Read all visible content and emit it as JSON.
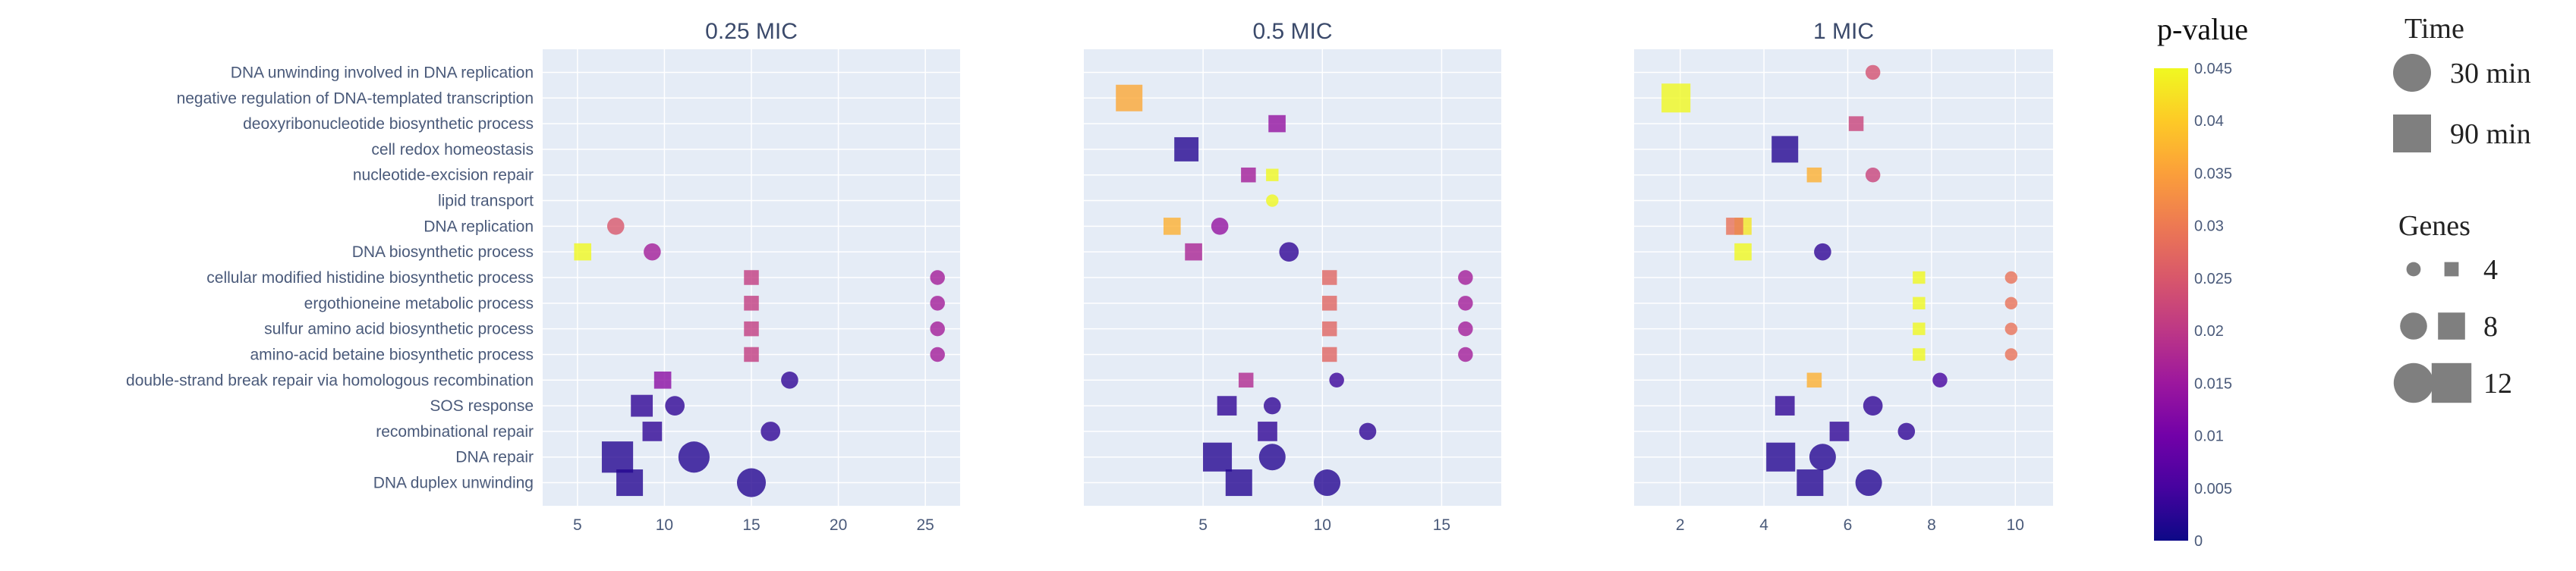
{
  "chart_data": {
    "type": "scatter",
    "categories": [
      "DNA unwinding involved in DNA replication",
      "negative regulation of DNA-templated transcription",
      "deoxyribonucleotide biosynthetic process",
      "cell redox homeostasis",
      "nucleotide-excision repair",
      "lipid transport",
      "DNA replication",
      "DNA biosynthetic process",
      "cellular modified histidine biosynthetic process",
      "ergothioneine metabolic process",
      "sulfur amino acid biosynthetic process",
      "amino-acid betaine biosynthetic process",
      "double-strand break repair via homologous recombination",
      "SOS response",
      "recombinational repair",
      "DNA repair",
      "DNA duplex unwinding"
    ],
    "colorscale": [
      "#0d0887",
      "#46039f",
      "#7201a8",
      "#9c179e",
      "#bd3786",
      "#d8576b",
      "#ed7953",
      "#fb9f3a",
      "#fdca26",
      "#f0f921"
    ],
    "colorbar": {
      "title": "p-value",
      "min": 0,
      "max": 0.045,
      "ticks": [
        "0",
        "0.005",
        "0.01",
        "0.015",
        "0.02",
        "0.025",
        "0.03",
        "0.035",
        "0.04",
        "0.045"
      ]
    },
    "panels": [
      {
        "title": "0.25 MIC",
        "xlim": [
          3,
          27
        ],
        "xticks": [
          "5",
          "10",
          "15",
          "20",
          "25"
        ],
        "points": [
          {
            "category": "DNA replication",
            "x": 7.2,
            "time": "30 min",
            "genes": 6,
            "p": 0.025
          },
          {
            "category": "DNA biosynthetic process",
            "x": 5.3,
            "time": "90 min",
            "genes": 6,
            "p": 0.045
          },
          {
            "category": "DNA biosynthetic process",
            "x": 9.3,
            "time": "30 min",
            "genes": 6,
            "p": 0.016
          },
          {
            "category": "cellular modified histidine biosynthetic process",
            "x": 15,
            "time": "90 min",
            "genes": 5,
            "p": 0.021
          },
          {
            "category": "cellular modified histidine biosynthetic process",
            "x": 25.7,
            "time": "30 min",
            "genes": 5,
            "p": 0.016
          },
          {
            "category": "ergothioneine metabolic process",
            "x": 15,
            "time": "90 min",
            "genes": 5,
            "p": 0.021
          },
          {
            "category": "ergothioneine metabolic process",
            "x": 25.7,
            "time": "30 min",
            "genes": 5,
            "p": 0.016
          },
          {
            "category": "sulfur amino acid biosynthetic process",
            "x": 15,
            "time": "90 min",
            "genes": 5,
            "p": 0.021
          },
          {
            "category": "sulfur amino acid biosynthetic process",
            "x": 25.7,
            "time": "30 min",
            "genes": 5,
            "p": 0.016
          },
          {
            "category": "amino-acid betaine biosynthetic process",
            "x": 15,
            "time": "90 min",
            "genes": 5,
            "p": 0.021
          },
          {
            "category": "amino-acid betaine biosynthetic process",
            "x": 25.7,
            "time": "30 min",
            "genes": 5,
            "p": 0.016
          },
          {
            "category": "double-strand break repair via homologous recombination",
            "x": 9.9,
            "time": "90 min",
            "genes": 6,
            "p": 0.013
          },
          {
            "category": "double-strand break repair via homologous recombination",
            "x": 17.2,
            "time": "30 min",
            "genes": 6,
            "p": 0.003
          },
          {
            "category": "SOS response",
            "x": 8.7,
            "time": "90 min",
            "genes": 8,
            "p": 0.003
          },
          {
            "category": "SOS response",
            "x": 10.6,
            "time": "30 min",
            "genes": 7,
            "p": 0.003
          },
          {
            "category": "recombinational repair",
            "x": 9.3,
            "time": "90 min",
            "genes": 7,
            "p": 0.003
          },
          {
            "category": "recombinational repair",
            "x": 16.1,
            "time": "30 min",
            "genes": 7,
            "p": 0.003
          },
          {
            "category": "DNA repair",
            "x": 7.3,
            "time": "90 min",
            "genes": 12,
            "p": 0.002
          },
          {
            "category": "DNA repair",
            "x": 11.7,
            "time": "30 min",
            "genes": 12,
            "p": 0.002
          },
          {
            "category": "DNA duplex unwinding",
            "x": 8.0,
            "time": "90 min",
            "genes": 10,
            "p": 0.002
          },
          {
            "category": "DNA duplex unwinding",
            "x": 15.0,
            "time": "30 min",
            "genes": 11,
            "p": 0.002
          }
        ]
      },
      {
        "title": "0.5 MIC",
        "xlim": [
          0,
          17.5
        ],
        "xticks": [
          "5",
          "10",
          "15"
        ],
        "points": [
          {
            "category": "negative regulation of DNA-templated transcription",
            "x": 1.9,
            "time": "90 min",
            "genes": 10,
            "p": 0.036
          },
          {
            "category": "deoxyribonucleotide biosynthetic process",
            "x": 8.1,
            "time": "90 min",
            "genes": 6,
            "p": 0.014
          },
          {
            "category": "cell redox homeostasis",
            "x": 4.3,
            "time": "90 min",
            "genes": 9,
            "p": 0.002
          },
          {
            "category": "nucleotide-excision repair",
            "x": 6.9,
            "time": "90 min",
            "genes": 5,
            "p": 0.016
          },
          {
            "category": "nucleotide-excision repair",
            "x": 7.9,
            "time": "90 min",
            "genes": 4,
            "p": 0.045
          },
          {
            "category": "lipid transport",
            "x": 7.9,
            "time": "30 min",
            "genes": 4,
            "p": 0.045
          },
          {
            "category": "DNA replication",
            "x": 3.7,
            "time": "90 min",
            "genes": 6,
            "p": 0.037
          },
          {
            "category": "DNA replication",
            "x": 5.7,
            "time": "30 min",
            "genes": 6,
            "p": 0.014
          },
          {
            "category": "DNA biosynthetic process",
            "x": 4.6,
            "time": "90 min",
            "genes": 6,
            "p": 0.017
          },
          {
            "category": "DNA biosynthetic process",
            "x": 8.6,
            "time": "30 min",
            "genes": 7,
            "p": 0.003
          },
          {
            "category": "cellular modified histidine biosynthetic process",
            "x": 10.3,
            "time": "90 min",
            "genes": 5,
            "p": 0.027
          },
          {
            "category": "cellular modified histidine biosynthetic process",
            "x": 16.0,
            "time": "30 min",
            "genes": 5,
            "p": 0.016
          },
          {
            "category": "ergothioneine metabolic process",
            "x": 10.3,
            "time": "90 min",
            "genes": 5,
            "p": 0.027
          },
          {
            "category": "ergothioneine metabolic process",
            "x": 16.0,
            "time": "30 min",
            "genes": 5,
            "p": 0.016
          },
          {
            "category": "sulfur amino acid biosynthetic process",
            "x": 10.3,
            "time": "90 min",
            "genes": 5,
            "p": 0.027
          },
          {
            "category": "sulfur amino acid biosynthetic process",
            "x": 16.0,
            "time": "30 min",
            "genes": 5,
            "p": 0.016
          },
          {
            "category": "amino-acid betaine biosynthetic process",
            "x": 10.3,
            "time": "90 min",
            "genes": 5,
            "p": 0.027
          },
          {
            "category": "amino-acid betaine biosynthetic process",
            "x": 16.0,
            "time": "30 min",
            "genes": 5,
            "p": 0.016
          },
          {
            "category": "double-strand break repair via homologous recombination",
            "x": 6.8,
            "time": "90 min",
            "genes": 5,
            "p": 0.018
          },
          {
            "category": "double-strand break repair via homologous recombination",
            "x": 10.6,
            "time": "30 min",
            "genes": 5,
            "p": 0.004
          },
          {
            "category": "SOS response",
            "x": 6.0,
            "time": "90 min",
            "genes": 7,
            "p": 0.003
          },
          {
            "category": "SOS response",
            "x": 7.9,
            "time": "30 min",
            "genes": 6,
            "p": 0.003
          },
          {
            "category": "recombinational repair",
            "x": 7.7,
            "time": "90 min",
            "genes": 7,
            "p": 0.003
          },
          {
            "category": "recombinational repair",
            "x": 11.9,
            "time": "30 min",
            "genes": 6,
            "p": 0.003
          },
          {
            "category": "DNA repair",
            "x": 5.6,
            "time": "90 min",
            "genes": 11,
            "p": 0.002
          },
          {
            "category": "DNA repair",
            "x": 7.9,
            "time": "30 min",
            "genes": 10,
            "p": 0.002
          },
          {
            "category": "DNA duplex unwinding",
            "x": 6.5,
            "time": "90 min",
            "genes": 10,
            "p": 0.002
          },
          {
            "category": "DNA duplex unwinding",
            "x": 10.2,
            "time": "30 min",
            "genes": 10,
            "p": 0.002
          }
        ]
      },
      {
        "title": "1 MIC",
        "xlim": [
          0.9,
          10.9
        ],
        "xticks": [
          "2",
          "4",
          "6",
          "8",
          "10"
        ],
        "points": [
          {
            "category": "DNA unwinding involved in DNA replication",
            "x": 6.6,
            "time": "30 min",
            "genes": 5,
            "p": 0.024
          },
          {
            "category": "negative regulation of DNA-templated transcription",
            "x": 1.9,
            "time": "90 min",
            "genes": 11,
            "p": 0.045
          },
          {
            "category": "deoxyribonucleotide biosynthetic process",
            "x": 6.2,
            "time": "90 min",
            "genes": 5,
            "p": 0.022
          },
          {
            "category": "cell redox homeostasis",
            "x": 4.5,
            "time": "90 min",
            "genes": 10,
            "p": 0.002
          },
          {
            "category": "nucleotide-excision repair",
            "x": 5.2,
            "time": "90 min",
            "genes": 5,
            "p": 0.037
          },
          {
            "category": "nucleotide-excision repair",
            "x": 6.6,
            "time": "30 min",
            "genes": 5,
            "p": 0.022
          },
          {
            "category": "DNA replication",
            "x": 3.5,
            "time": "90 min",
            "genes": 6,
            "p": 0.043
          },
          {
            "category": "DNA replication",
            "x": 3.3,
            "time": "90 min",
            "genes": 6,
            "p": 0.029
          },
          {
            "category": "DNA biosynthetic process",
            "x": 3.5,
            "time": "90 min",
            "genes": 6,
            "p": 0.045
          },
          {
            "category": "DNA biosynthetic process",
            "x": 5.4,
            "time": "30 min",
            "genes": 6,
            "p": 0.003
          },
          {
            "category": "cellular modified histidine biosynthetic process",
            "x": 7.7,
            "time": "90 min",
            "genes": 4,
            "p": 0.045
          },
          {
            "category": "cellular modified histidine biosynthetic process",
            "x": 9.9,
            "time": "30 min",
            "genes": 4,
            "p": 0.029
          },
          {
            "category": "ergothioneine metabolic process",
            "x": 7.7,
            "time": "90 min",
            "genes": 4,
            "p": 0.045
          },
          {
            "category": "ergothioneine metabolic process",
            "x": 9.9,
            "time": "30 min",
            "genes": 4,
            "p": 0.029
          },
          {
            "category": "sulfur amino acid biosynthetic process",
            "x": 7.7,
            "time": "90 min",
            "genes": 4,
            "p": 0.045
          },
          {
            "category": "sulfur amino acid biosynthetic process",
            "x": 9.9,
            "time": "30 min",
            "genes": 4,
            "p": 0.029
          },
          {
            "category": "amino-acid betaine biosynthetic process",
            "x": 7.7,
            "time": "90 min",
            "genes": 4,
            "p": 0.045
          },
          {
            "category": "amino-acid betaine biosynthetic process",
            "x": 9.9,
            "time": "30 min",
            "genes": 4,
            "p": 0.029
          },
          {
            "category": "double-strand break repair via homologous recombination",
            "x": 5.2,
            "time": "90 min",
            "genes": 5,
            "p": 0.037
          },
          {
            "category": "double-strand break repair via homologous recombination",
            "x": 8.2,
            "time": "30 min",
            "genes": 5,
            "p": 0.005
          },
          {
            "category": "SOS response",
            "x": 4.5,
            "time": "90 min",
            "genes": 7,
            "p": 0.003
          },
          {
            "category": "SOS response",
            "x": 6.6,
            "time": "30 min",
            "genes": 7,
            "p": 0.003
          },
          {
            "category": "recombinational repair",
            "x": 5.8,
            "time": "90 min",
            "genes": 7,
            "p": 0.003
          },
          {
            "category": "recombinational repair",
            "x": 7.4,
            "time": "30 min",
            "genes": 6,
            "p": 0.003
          },
          {
            "category": "DNA repair",
            "x": 4.4,
            "time": "90 min",
            "genes": 11,
            "p": 0.002
          },
          {
            "category": "DNA repair",
            "x": 5.4,
            "time": "30 min",
            "genes": 10,
            "p": 0.002
          },
          {
            "category": "DNA duplex unwinding",
            "x": 5.1,
            "time": "90 min",
            "genes": 10,
            "p": 0.002
          },
          {
            "category": "DNA duplex unwinding",
            "x": 6.5,
            "time": "30 min",
            "genes": 10,
            "p": 0.002
          }
        ]
      }
    ]
  },
  "legend": {
    "time_title": "Time",
    "time_items": [
      {
        "label": "30 min",
        "shape": "circle"
      },
      {
        "label": "90 min",
        "shape": "square"
      }
    ],
    "genes_title": "Genes",
    "genes_items": [
      {
        "label": "4",
        "genes": 4
      },
      {
        "label": "8",
        "genes": 8
      },
      {
        "label": "12",
        "genes": 12
      }
    ]
  },
  "colors": {
    "plot_bg": "#e5ecf6",
    "grid": "#ffffff",
    "legend_marker": "#7f7f7f"
  }
}
